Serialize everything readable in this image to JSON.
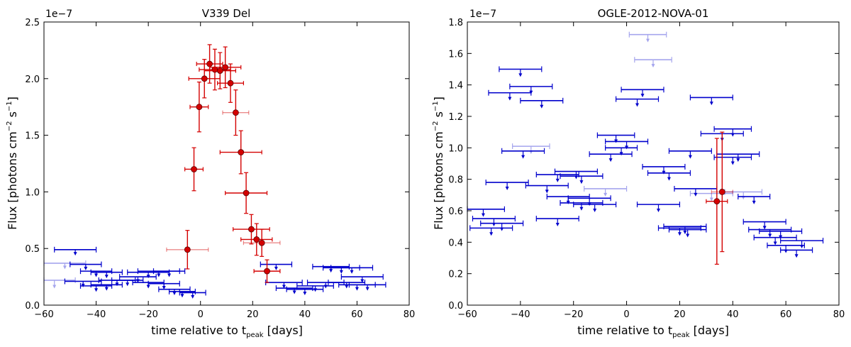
{
  "chart_data": [
    {
      "type": "scatter",
      "title": "V339 Del",
      "xlabel": "time relative to t",
      "xlabel_sub": "peak",
      "xlabel_suffix": " [days]",
      "ylabel": "Flux [photons cm",
      "ylabel_exp": "−2",
      "ylabel_mid": " s",
      "ylabel_exp2": "−1",
      "ylabel_suffix": "]",
      "offset_label": "1e−7",
      "xlim": [
        -60,
        80
      ],
      "ylim": [
        0.0,
        2.5
      ],
      "xticks": [
        -60,
        -40,
        -20,
        0,
        20,
        40,
        60,
        80
      ],
      "xtick_labels": [
        "−60",
        "−40",
        "−20",
        "0",
        "20",
        "40",
        "60",
        "80"
      ],
      "yticks": [
        0.0,
        0.5,
        1.0,
        1.5,
        2.0,
        2.5
      ],
      "ytick_labels": [
        "0.0",
        "0.5",
        "1.0",
        "1.5",
        "2.0",
        "2.5"
      ],
      "detection_color": "#d40000",
      "upper_limit_color": "#0000cc",
      "series": [
        {
          "name": "detections",
          "points": [
            {
              "x": -5,
              "y": 0.49,
              "xerr": 8,
              "yerr": 0.17,
              "faint": true
            },
            {
              "x": -2.5,
              "y": 1.2,
              "xerr": 3.5,
              "yerr": 0.19
            },
            {
              "x": -0.5,
              "y": 1.75,
              "xerr": 3.5,
              "yerr": 0.22
            },
            {
              "x": 1.5,
              "y": 2.0,
              "xerr": 6,
              "yerr": 0.17
            },
            {
              "x": 3.5,
              "y": 2.13,
              "xerr": 5,
              "yerr": 0.17
            },
            {
              "x": 5.5,
              "y": 2.08,
              "xerr": 6,
              "yerr": 0.18
            },
            {
              "x": 7.5,
              "y": 2.07,
              "xerr": 6,
              "yerr": 0.16
            },
            {
              "x": 9.5,
              "y": 2.1,
              "xerr": 6,
              "yerr": 0.18
            },
            {
              "x": 11.5,
              "y": 1.96,
              "xerr": 5,
              "yerr": 0.17
            },
            {
              "x": 13.5,
              "y": 1.7,
              "xerr": 5,
              "yerr": 0.2,
              "faint": true
            },
            {
              "x": 15.5,
              "y": 1.35,
              "xerr": 8,
              "yerr": 0.19
            },
            {
              "x": 17.5,
              "y": 0.99,
              "xerr": 8,
              "yerr": 0.18
            },
            {
              "x": 19.5,
              "y": 0.67,
              "xerr": 7,
              "yerr": 0.13
            },
            {
              "x": 21.5,
              "y": 0.58,
              "xerr": 6,
              "yerr": 0.14
            },
            {
              "x": 23.5,
              "y": 0.55,
              "xerr": 7,
              "yerr": 0.12,
              "faint": true
            },
            {
              "x": 25.5,
              "y": 0.3,
              "xerr": 5,
              "yerr": 0.1
            }
          ]
        },
        {
          "name": "upper_limits",
          "points": [
            {
              "x": -48,
              "y": 0.49,
              "xerr": 8,
              "arrow": 0.04
            },
            {
              "x": -52,
              "y": 0.37,
              "xerr": 8,
              "arrow": 0.04,
              "faint": true
            },
            {
              "x": -44,
              "y": 0.36,
              "xerr": 6,
              "arrow": 0.04
            },
            {
              "x": -40,
              "y": 0.3,
              "xerr": 6,
              "arrow": 0.04
            },
            {
              "x": -36,
              "y": 0.29,
              "xerr": 6,
              "arrow": 0.04
            },
            {
              "x": -56,
              "y": 0.22,
              "xerr": 8,
              "arrow": 0.06,
              "faint": true
            },
            {
              "x": -45,
              "y": 0.21,
              "xerr": 7,
              "arrow": 0.04
            },
            {
              "x": -40,
              "y": 0.17,
              "xerr": 6,
              "arrow": 0.04
            },
            {
              "x": -36,
              "y": 0.18,
              "xerr": 6,
              "arrow": 0.04
            },
            {
              "x": -32,
              "y": 0.22,
              "xerr": 7,
              "arrow": 0.04
            },
            {
              "x": -28,
              "y": 0.22,
              "xerr": 6,
              "arrow": 0.04
            },
            {
              "x": -24,
              "y": 0.25,
              "xerr": 7,
              "arrow": 0.04
            },
            {
              "x": -20,
              "y": 0.29,
              "xerr": 8,
              "arrow": 0.04
            },
            {
              "x": -16,
              "y": 0.3,
              "xerr": 8,
              "arrow": 0.04
            },
            {
              "x": -12,
              "y": 0.3,
              "xerr": 6,
              "arrow": 0.04
            },
            {
              "x": -20,
              "y": 0.2,
              "xerr": 6,
              "arrow": 0.04
            },
            {
              "x": -14,
              "y": 0.19,
              "xerr": 6,
              "arrow": 0.04
            },
            {
              "x": -10,
              "y": 0.14,
              "xerr": 6,
              "arrow": 0.04
            },
            {
              "x": -7,
              "y": 0.12,
              "xerr": 5,
              "arrow": 0.04
            },
            {
              "x": -3,
              "y": 0.11,
              "xerr": 5,
              "arrow": 0.04
            },
            {
              "x": 29,
              "y": 0.36,
              "xerr": 6,
              "arrow": 0.04
            },
            {
              "x": 32,
              "y": 0.2,
              "xerr": 7,
              "arrow": 0.04
            },
            {
              "x": 36,
              "y": 0.15,
              "xerr": 7,
              "arrow": 0.04
            },
            {
              "x": 40,
              "y": 0.14,
              "xerr": 7,
              "arrow": 0.04
            },
            {
              "x": 44,
              "y": 0.17,
              "xerr": 7,
              "arrow": 0.04
            },
            {
              "x": 48,
              "y": 0.2,
              "xerr": 7,
              "arrow": 0.04
            },
            {
              "x": 50,
              "y": 0.34,
              "xerr": 7,
              "arrow": 0.04
            },
            {
              "x": 54,
              "y": 0.33,
              "xerr": 7,
              "arrow": 0.04
            },
            {
              "x": 58,
              "y": 0.33,
              "xerr": 8,
              "arrow": 0.04
            },
            {
              "x": 62,
              "y": 0.25,
              "xerr": 8,
              "arrow": 0.04
            },
            {
              "x": 56,
              "y": 0.2,
              "xerr": 7,
              "arrow": 0.04
            },
            {
              "x": 60,
              "y": 0.18,
              "xerr": 7,
              "arrow": 0.04
            },
            {
              "x": 64,
              "y": 0.18,
              "xerr": 7,
              "arrow": 0.04
            }
          ]
        }
      ]
    },
    {
      "type": "scatter",
      "title": "OGLE-2012-NOVA-01",
      "xlabel": "time relative to t",
      "xlabel_sub": "peak",
      "xlabel_suffix": " [days]",
      "ylabel": "Flux [photons cm",
      "ylabel_exp": "−2",
      "ylabel_mid": " s",
      "ylabel_exp2": "−1",
      "ylabel_suffix": "]",
      "offset_label": "1e−7",
      "xlim": [
        -60,
        80
      ],
      "ylim": [
        0.0,
        1.8
      ],
      "xticks": [
        -60,
        -40,
        -20,
        0,
        20,
        40,
        60,
        80
      ],
      "xtick_labels": [
        "−60",
        "−40",
        "−20",
        "0",
        "20",
        "40",
        "60",
        "80"
      ],
      "yticks": [
        0.0,
        0.2,
        0.4,
        0.6,
        0.8,
        1.0,
        1.2,
        1.4,
        1.6,
        1.8
      ],
      "ytick_labels": [
        "0.0",
        "0.2",
        "0.4",
        "0.6",
        "0.8",
        "1.0",
        "1.2",
        "1.4",
        "1.6",
        "1.8"
      ],
      "detection_color": "#d40000",
      "upper_limit_color": "#0000cc",
      "series": [
        {
          "name": "detections",
          "points": [
            {
              "x": 34,
              "y": 0.66,
              "xerr": 4,
              "yerr": 0.4
            },
            {
              "x": 36,
              "y": 0.72,
              "xerr": 4,
              "yerr": 0.38,
              "faint": true
            }
          ]
        },
        {
          "name": "upper_limits",
          "points": [
            {
              "x": 8,
              "y": 1.72,
              "xerr": 7,
              "arrow": 0.04,
              "faint": true
            },
            {
              "x": 10,
              "y": 1.56,
              "xerr": 7,
              "arrow": 0.04,
              "faint": true
            },
            {
              "x": -40,
              "y": 1.5,
              "xerr": 8,
              "arrow": 0.04
            },
            {
              "x": -36,
              "y": 1.39,
              "xerr": 8,
              "arrow": 0.04
            },
            {
              "x": -44,
              "y": 1.35,
              "xerr": 8,
              "arrow": 0.04
            },
            {
              "x": -32,
              "y": 1.3,
              "xerr": 8,
              "arrow": 0.04
            },
            {
              "x": 6,
              "y": 1.37,
              "xerr": 8,
              "arrow": 0.04
            },
            {
              "x": 4,
              "y": 1.31,
              "xerr": 8,
              "arrow": 0.04
            },
            {
              "x": 32,
              "y": 1.32,
              "xerr": 8,
              "arrow": 0.04
            },
            {
              "x": 40,
              "y": 1.12,
              "xerr": 7,
              "arrow": 0.04
            },
            {
              "x": 36,
              "y": 1.09,
              "xerr": 8,
              "arrow": 0.04
            },
            {
              "x": -36,
              "y": 1.01,
              "xerr": 7,
              "arrow": 0.04,
              "faint": true
            },
            {
              "x": -39,
              "y": 0.98,
              "xerr": 8,
              "arrow": 0.04
            },
            {
              "x": -4,
              "y": 1.08,
              "xerr": 7,
              "arrow": 0.04
            },
            {
              "x": 0,
              "y": 1.04,
              "xerr": 8,
              "arrow": 0.04
            },
            {
              "x": -2,
              "y": 1.0,
              "xerr": 6,
              "arrow": 0.04
            },
            {
              "x": -6,
              "y": 0.96,
              "xerr": 8,
              "arrow": 0.04
            },
            {
              "x": 24,
              "y": 0.98,
              "xerr": 8,
              "arrow": 0.04
            },
            {
              "x": 42,
              "y": 0.96,
              "xerr": 8,
              "arrow": 0.04
            },
            {
              "x": 40,
              "y": 0.94,
              "xerr": 7,
              "arrow": 0.04
            },
            {
              "x": 14,
              "y": 0.88,
              "xerr": 8,
              "arrow": 0.04
            },
            {
              "x": 16,
              "y": 0.84,
              "xerr": 8,
              "arrow": 0.04
            },
            {
              "x": -26,
              "y": 0.83,
              "xerr": 8,
              "arrow": 0.04
            },
            {
              "x": -19,
              "y": 0.85,
              "xerr": 8,
              "arrow": 0.04
            },
            {
              "x": -17,
              "y": 0.82,
              "xerr": 8,
              "arrow": 0.04
            },
            {
              "x": -45,
              "y": 0.78,
              "xerr": 8,
              "arrow": 0.04
            },
            {
              "x": -30,
              "y": 0.76,
              "xerr": 8,
              "arrow": 0.04
            },
            {
              "x": -8,
              "y": 0.74,
              "xerr": 8,
              "arrow": 0.04,
              "faint": true
            },
            {
              "x": 26,
              "y": 0.74,
              "xerr": 8,
              "arrow": 0.04
            },
            {
              "x": -22,
              "y": 0.69,
              "xerr": 8,
              "arrow": 0.04
            },
            {
              "x": -14,
              "y": 0.68,
              "xerr": 8,
              "arrow": 0.04
            },
            {
              "x": 44,
              "y": 0.72,
              "xerr": 7,
              "arrow": 0.04,
              "faint": true
            },
            {
              "x": 48,
              "y": 0.69,
              "xerr": 6,
              "arrow": 0.04
            },
            {
              "x": 32,
              "y": 0.71,
              "xerr": 8,
              "arrow": 0.04,
              "faint": true
            },
            {
              "x": -17,
              "y": 0.65,
              "xerr": 8,
              "arrow": 0.04
            },
            {
              "x": -12,
              "y": 0.64,
              "xerr": 8,
              "arrow": 0.04
            },
            {
              "x": 12,
              "y": 0.64,
              "xerr": 8,
              "arrow": 0.04
            },
            {
              "x": -54,
              "y": 0.61,
              "xerr": 8,
              "arrow": 0.04
            },
            {
              "x": -50,
              "y": 0.55,
              "xerr": 8,
              "arrow": 0.04
            },
            {
              "x": -47,
              "y": 0.52,
              "xerr": 8,
              "arrow": 0.04
            },
            {
              "x": -51,
              "y": 0.49,
              "xerr": 8,
              "arrow": 0.04
            },
            {
              "x": -26,
              "y": 0.55,
              "xerr": 8,
              "arrow": 0.04
            },
            {
              "x": 20,
              "y": 0.49,
              "xerr": 8,
              "arrow": 0.04
            },
            {
              "x": 22,
              "y": 0.5,
              "xerr": 8,
              "arrow": 0.04
            },
            {
              "x": 23,
              "y": 0.48,
              "xerr": 7,
              "arrow": 0.04
            },
            {
              "x": 52,
              "y": 0.53,
              "xerr": 8,
              "arrow": 0.04
            },
            {
              "x": 54,
              "y": 0.48,
              "xerr": 8,
              "arrow": 0.04
            },
            {
              "x": 58,
              "y": 0.47,
              "xerr": 8,
              "arrow": 0.04
            },
            {
              "x": 56,
              "y": 0.43,
              "xerr": 8,
              "arrow": 0.04
            },
            {
              "x": 66,
              "y": 0.41,
              "xerr": 8,
              "arrow": 0.04
            },
            {
              "x": 60,
              "y": 0.38,
              "xerr": 7,
              "arrow": 0.04
            },
            {
              "x": 64,
              "y": 0.35,
              "xerr": 6,
              "arrow": 0.04
            }
          ]
        }
      ]
    }
  ]
}
